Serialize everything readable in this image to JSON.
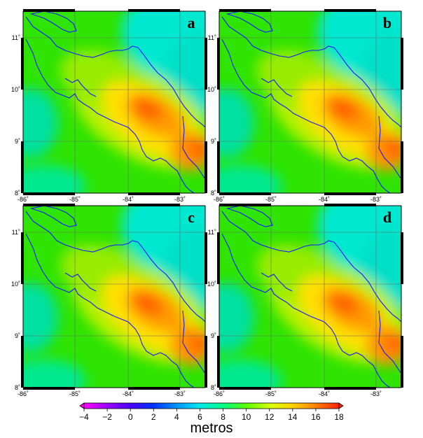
{
  "panels": [
    {
      "letter": "a"
    },
    {
      "letter": "b"
    },
    {
      "letter": "c"
    },
    {
      "letter": "d"
    }
  ],
  "axes": {
    "lon_labels": [
      "-86˚",
      "-85˚",
      "-84˚",
      "-83˚"
    ],
    "lat_labels": [
      "8˚",
      "9˚",
      "10˚",
      "11˚"
    ]
  },
  "colorbar": {
    "tick_labels": [
      "−4",
      "−2",
      "0",
      "2",
      "4",
      "6",
      "8",
      "10",
      "12",
      "14",
      "16",
      "18"
    ],
    "title": "metros",
    "colors": [
      "#ff00ff",
      "#9a00ff",
      "#4a00ff",
      "#0030ff",
      "#0090ff",
      "#00e8f0",
      "#00ff80",
      "#60ff00",
      "#d8ff00",
      "#ffd000",
      "#ff8000",
      "#ff2000"
    ]
  },
  "colors": {
    "background": "#00e400",
    "coastline": "#1a1aff",
    "grid": "#6a6a6a"
  }
}
